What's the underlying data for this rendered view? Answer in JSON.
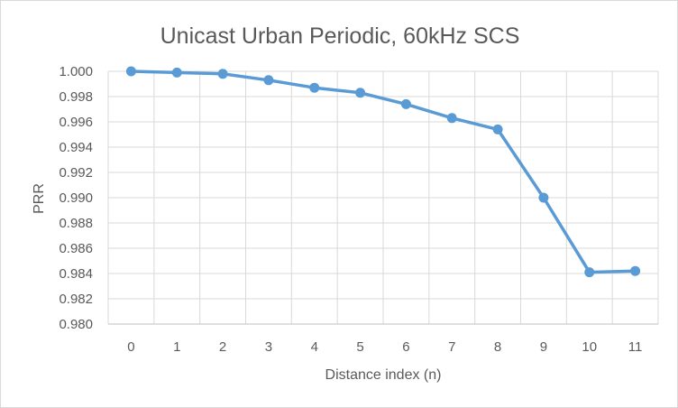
{
  "chart_data": {
    "type": "line",
    "title": "Unicast Urban Periodic, 60kHz SCS",
    "xlabel": "Distance index (n)",
    "ylabel": "PRR",
    "categories": [
      "0",
      "1",
      "2",
      "3",
      "4",
      "5",
      "6",
      "7",
      "8",
      "9",
      "10",
      "11"
    ],
    "series": [
      {
        "values": [
          1.0,
          0.9999,
          0.9998,
          0.9993,
          0.9987,
          0.9983,
          0.9974,
          0.9963,
          0.9954,
          0.99,
          0.9841,
          0.9842
        ],
        "color": "#5b9bd5"
      }
    ],
    "ylim": [
      0.98,
      1.0
    ],
    "ytick_step": 0.002,
    "yticks": [
      "0.980",
      "0.982",
      "0.984",
      "0.986",
      "0.988",
      "0.990",
      "0.992",
      "0.994",
      "0.996",
      "0.998",
      "1.000"
    ],
    "grid": true,
    "legend": "none"
  }
}
